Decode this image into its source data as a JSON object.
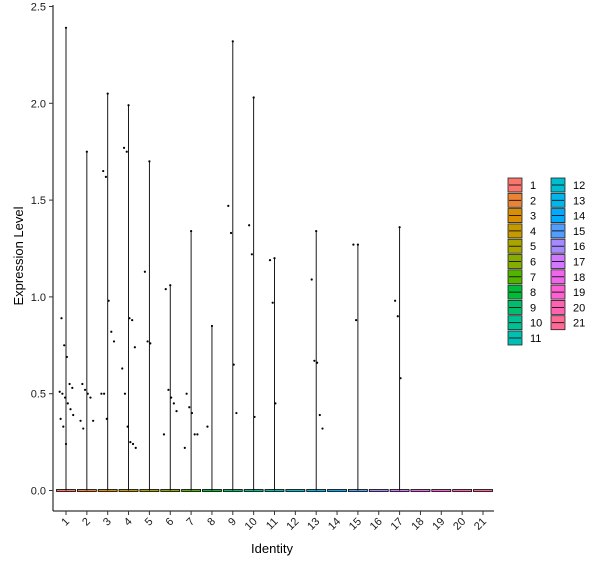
{
  "chart_data": {
    "type": "violin",
    "xlabel": "Identity",
    "ylabel": "Expression Level",
    "ylim": [
      -0.1,
      2.5
    ],
    "yticks": [
      "0.0",
      "0.5",
      "1.0",
      "1.5",
      "2.0",
      "2.5"
    ],
    "categories": [
      "1",
      "2",
      "3",
      "4",
      "5",
      "6",
      "7",
      "8",
      "9",
      "10",
      "11",
      "12",
      "13",
      "14",
      "15",
      "16",
      "17",
      "18",
      "19",
      "20",
      "21"
    ],
    "colors": [
      "#F8766D",
      "#EB8335",
      "#DA8F00",
      "#C49A00",
      "#A9A400",
      "#86AC00",
      "#53B400",
      "#00BA38",
      "#00BE6D",
      "#00C094",
      "#00C0B4",
      "#00BDD0",
      "#00B6EB",
      "#00ABFD",
      "#529EFF",
      "#A58AFF",
      "#D277FF",
      "#EE67EB",
      "#FD61D1",
      "#FF62B0",
      "#FF6A95"
    ],
    "max_values": [
      2.39,
      1.75,
      2.05,
      1.99,
      1.7,
      1.06,
      1.34,
      0.85,
      2.32,
      2.03,
      1.2,
      0,
      1.34,
      0,
      1.27,
      0,
      1.36,
      0,
      0,
      0,
      0
    ],
    "points": [
      {
        "c": 1,
        "y": [
          2.39,
          0.89,
          0.75,
          0.69,
          0.55,
          0.53,
          0.51,
          0.5,
          0.48,
          0.45,
          0.42,
          0.39,
          0.37,
          0.33,
          0.24
        ]
      },
      {
        "c": 2,
        "y": [
          1.75,
          0.55,
          0.52,
          0.5,
          0.48,
          0.36,
          0.36,
          0.32
        ]
      },
      {
        "c": 3,
        "y": [
          2.05,
          1.65,
          1.62,
          0.98,
          0.82,
          0.77,
          0.5,
          0.5,
          0.37
        ]
      },
      {
        "c": 4,
        "y": [
          1.99,
          1.77,
          1.75,
          0.89,
          0.88,
          0.74,
          0.63,
          0.5,
          0.33,
          0.25,
          0.24,
          0.22
        ]
      },
      {
        "c": 5,
        "y": [
          1.7,
          1.13,
          0.77,
          0.76
        ]
      },
      {
        "c": 6,
        "y": [
          1.06,
          1.04,
          0.52,
          0.48,
          0.45,
          0.41,
          0.29
        ]
      },
      {
        "c": 7,
        "y": [
          1.34,
          0.5,
          0.43,
          0.4,
          0.29,
          0.29,
          0.22
        ]
      },
      {
        "c": 8,
        "y": [
          0.85,
          0.33
        ]
      },
      {
        "c": 9,
        "y": [
          2.32,
          1.47,
          1.33,
          0.65,
          0.4
        ]
      },
      {
        "c": 10,
        "y": [
          2.03,
          1.37,
          1.22,
          0.38
        ]
      },
      {
        "c": 11,
        "y": [
          1.2,
          1.19,
          0.97,
          0.45
        ]
      },
      {
        "c": 13,
        "y": [
          1.34,
          1.09,
          0.67,
          0.66,
          0.39,
          0.32
        ]
      },
      {
        "c": 15,
        "y": [
          1.27,
          1.27,
          0.88
        ]
      },
      {
        "c": 17,
        "y": [
          1.36,
          0.98,
          0.9,
          0.58
        ]
      }
    ],
    "legend": {
      "position": "right",
      "columns": 2
    }
  }
}
